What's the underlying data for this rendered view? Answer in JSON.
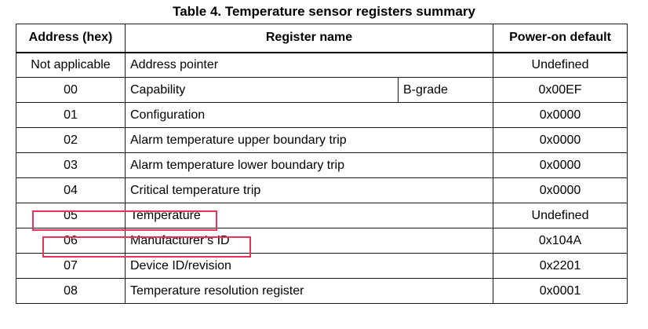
{
  "caption": "Table 4. Temperature sensor registers summary",
  "headers": {
    "address": "Address (hex)",
    "name": "Register name",
    "default": "Power-on default"
  },
  "rows": [
    {
      "address": "Not applicable",
      "name": "Address pointer",
      "default": "Undefined"
    },
    {
      "address": "00",
      "name": "Capability",
      "grade": "B-grade",
      "default": "0x00EF"
    },
    {
      "address": "01",
      "name": "Configuration",
      "default": "0x0000"
    },
    {
      "address": "02",
      "name": "Alarm temperature upper boundary trip",
      "default": "0x0000"
    },
    {
      "address": "03",
      "name": "Alarm temperature lower boundary trip",
      "default": "0x0000"
    },
    {
      "address": "04",
      "name": "Critical temperature trip",
      "default": "0x0000"
    },
    {
      "address": "05",
      "name": "Temperature",
      "default": "Undefined"
    },
    {
      "address": "06",
      "name": "Manufacturer’s ID",
      "default": "0x104A"
    },
    {
      "address": "07",
      "name": "Device ID/revision",
      "default": "0x2201"
    },
    {
      "address": "08",
      "name": "Temperature resolution register",
      "default": "0x0001"
    }
  ],
  "highlight_color": "#e8335a"
}
